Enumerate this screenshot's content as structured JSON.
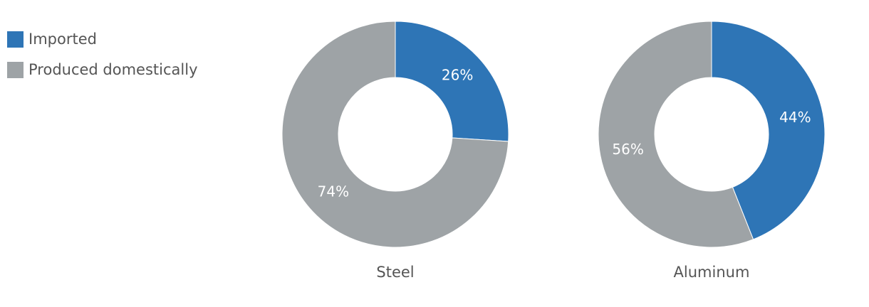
{
  "chart_data": [
    {
      "type": "donut",
      "title": "Steel",
      "categories": [
        "Imported",
        "Produced domestically"
      ],
      "values": [
        26,
        74
      ],
      "value_labels": [
        "26%",
        "74%"
      ],
      "colors": [
        "#2e75b6",
        "#9ea3a6"
      ],
      "legend": "top-left"
    },
    {
      "type": "donut",
      "title": "Aluminum",
      "categories": [
        "Imported",
        "Produced domestically"
      ],
      "values": [
        44,
        56
      ],
      "value_labels": [
        "44%",
        "56%"
      ],
      "colors": [
        "#2e75b6",
        "#9ea3a6"
      ],
      "legend": "top-left"
    }
  ]
}
